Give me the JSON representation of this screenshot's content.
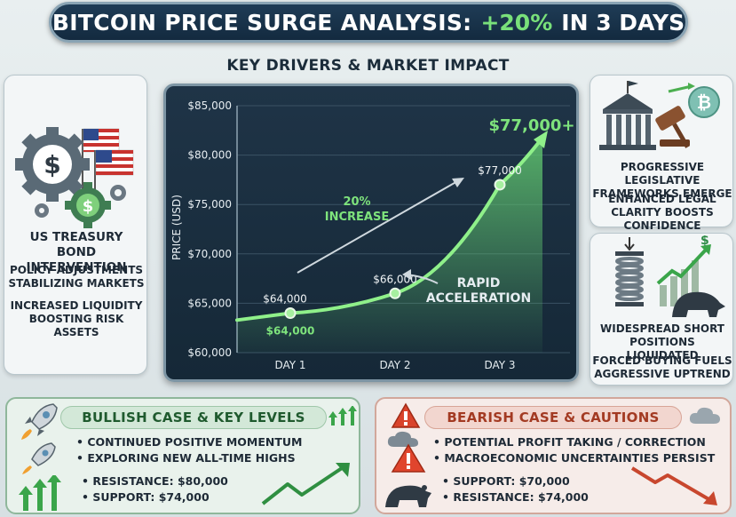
{
  "header": {
    "title_main": "BITCOIN PRICE SURGE ANALYSIS:",
    "title_accent": "+20%",
    "title_tail": "IN 3 DAYS",
    "subtitle": "KEY DRIVERS & MARKET IMPACT"
  },
  "left_panel": {
    "heading": "US TREASURY BOND INTERVENTION",
    "point_1": "POLICY ADJUSTMENTS STABILIZING MARKETS",
    "point_2": "INCREASED LIQUIDITY BOOSTING RISK ASSETS",
    "icon": "gears-dollar-flags-icon"
  },
  "right_top_panel": {
    "heading": "PROGRESSIVE LEGISLATIVE FRAMEWORKS EMERGE",
    "point": "ENHANCED LEGAL CLARITY BOOSTS CONFIDENCE",
    "icon": "capitol-gavel-bitcoin-icon"
  },
  "right_bottom_panel": {
    "heading": "WIDESPREAD SHORT POSITIONS LIQUIDATED",
    "point": "FORCED BUYING FUELS AGGRESSIVE UPTREND",
    "icon": "spring-bear-chart-icon"
  },
  "chart_data": {
    "type": "line",
    "ylabel": "PRICE (USD)",
    "categories": [
      "DAY 1",
      "DAY 2",
      "DAY 3"
    ],
    "y_ticks": [
      "$85,000",
      "$80,000",
      "$75,000",
      "$70,000",
      "$65,000",
      "$60,000"
    ],
    "ylim": [
      60000,
      85000
    ],
    "series": [
      {
        "values": [
          64000,
          66000,
          77000
        ]
      }
    ],
    "point_labels": [
      "$64,000",
      "$66,000",
      "$77,000"
    ],
    "point_label_day1_below": "$64,000",
    "peak_label": "$77,000+",
    "annotation_increase": "20% INCREASE",
    "annotation_accel": "RAPID ACCELERATION",
    "colors": {
      "line": "#8ff08a",
      "area": "#3f9a5a",
      "label_green": "#7ee37c"
    }
  },
  "bullish": {
    "title": "BULLISH CASE & KEY LEVELS",
    "point_1": "CONTINUED POSITIVE MOMENTUM",
    "point_2": "EXPLORING NEW ALL-TIME HIGHS",
    "resistance_label": "RESISTANCE:",
    "resistance_value": "$80,000",
    "support_label": "SUPPORT:",
    "support_value": "$74,000",
    "color": "#2e8b46"
  },
  "bearish": {
    "title": "BEARISH CASE & CAUTIONS",
    "point_1": "POTENTIAL PROFIT TAKING / CORRECTION",
    "point_2": "MACROECONOMIC UNCERTAINTIES PERSIST",
    "support_label": "SUPPORT:",
    "support_value": "$70,000",
    "resistance_label": "RESISTANCE:",
    "resistance_value": "$74,000",
    "color": "#c8472e"
  }
}
